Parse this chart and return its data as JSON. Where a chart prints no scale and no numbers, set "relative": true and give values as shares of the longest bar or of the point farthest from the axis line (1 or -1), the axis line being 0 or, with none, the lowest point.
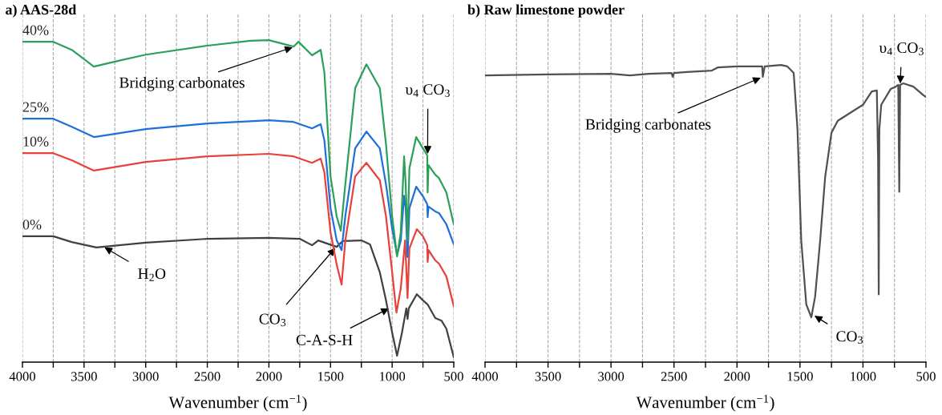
{
  "chart_data": [
    {
      "type": "line",
      "title": "a) AAS-28d",
      "xlabel": "Wavenumber (cm$^{−1}$)",
      "relative": true,
      "legend": false,
      "grid": "x",
      "marker": "none",
      "line_style": "solid",
      "xlim": [
        4000,
        500
      ],
      "xticks": [
        4000,
        {
          "value": 3750,
          "label": null
        },
        3500,
        {
          "value": 3250,
          "label": null
        },
        3000,
        {
          "value": 2750,
          "label": null
        },
        2500,
        {
          "value": 2250,
          "label": null
        },
        2000,
        {
          "value": 1750,
          "label": null
        },
        1500,
        {
          "value": 1250,
          "label": null
        },
        1000,
        {
          "value": 750,
          "label": null
        },
        500
      ],
      "series": [
        {
          "name": "40%",
          "color": "#2ca05a",
          "x": [
            4000,
            3750,
            3600,
            3421,
            3200,
            3000,
            2500,
            2150,
            2000,
            1800,
            1760,
            1650,
            1580,
            1550,
            1500,
            1450,
            1417,
            1380,
            1300,
            1209,
            1100,
            1050,
            1000,
            960,
            930,
            903,
            890,
            875,
            860,
            805,
            750,
            715,
            712,
            705,
            650,
            620,
            560,
            500
          ],
          "values": [
            0.995,
            0.995,
            0.97,
            0.918,
            0.938,
            0.955,
            0.983,
            0.998,
            1.0,
            0.98,
            0.995,
            0.953,
            0.97,
            0.9,
            0.577,
            0.453,
            0.408,
            0.552,
            0.851,
            0.925,
            0.851,
            0.677,
            0.453,
            0.328,
            0.403,
            0.639,
            0.552,
            0.378,
            0.602,
            0.699,
            0.664,
            0.642,
            0.527,
            0.612,
            0.582,
            0.572,
            0.527,
            0.428
          ]
        },
        {
          "name": "25%",
          "color": "#1f6fd8",
          "x": [
            4000,
            3750,
            3600,
            3420,
            3000,
            2500,
            2000,
            1800,
            1650,
            1580,
            1550,
            1500,
            1450,
            1410,
            1380,
            1300,
            1209,
            1100,
            1050,
            1000,
            960,
            930,
            903,
            890,
            875,
            860,
            805,
            750,
            715,
            712,
            705,
            650,
            620,
            560,
            500
          ],
          "values": [
            0.756,
            0.756,
            0.731,
            0.699,
            0.724,
            0.741,
            0.751,
            0.746,
            0.726,
            0.739,
            0.689,
            0.478,
            0.378,
            0.348,
            0.453,
            0.664,
            0.716,
            0.664,
            0.552,
            0.415,
            0.333,
            0.378,
            0.517,
            0.478,
            0.326,
            0.478,
            0.545,
            0.515,
            0.49,
            0.45,
            0.483,
            0.468,
            0.463,
            0.428,
            0.366
          ]
        },
        {
          "name": "10%",
          "color": "#e8403c",
          "x": [
            4000,
            3750,
            3600,
            3420,
            3000,
            2500,
            2000,
            1800,
            1650,
            1580,
            1550,
            1500,
            1450,
            1410,
            1380,
            1300,
            1209,
            1100,
            1050,
            1000,
            965,
            930,
            895,
            875,
            860,
            800,
            750,
            715,
            712,
            705,
            650,
            620,
            560,
            500
          ],
          "values": [
            0.649,
            0.649,
            0.627,
            0.595,
            0.622,
            0.639,
            0.647,
            0.639,
            0.619,
            0.632,
            0.59,
            0.403,
            0.303,
            0.241,
            0.378,
            0.577,
            0.619,
            0.565,
            0.453,
            0.279,
            0.154,
            0.229,
            0.378,
            0.199,
            0.353,
            0.413,
            0.391,
            0.363,
            0.311,
            0.348,
            0.316,
            0.306,
            0.266,
            0.174
          ]
        },
        {
          "name": "0%",
          "color": "#404040",
          "x": [
            4000,
            3750,
            3600,
            3400,
            3000,
            2500,
            2000,
            1750,
            1650,
            1600,
            1450,
            1400,
            1250,
            1180,
            1100,
            1050,
            1000,
            960,
            920,
            885,
            875,
            865,
            800,
            750,
            712,
            650,
            600,
            560,
            500
          ],
          "values": [
            0.391,
            0.391,
            0.373,
            0.356,
            0.371,
            0.383,
            0.386,
            0.383,
            0.363,
            0.378,
            0.358,
            0.376,
            0.378,
            0.366,
            0.279,
            0.192,
            0.092,
            0.02,
            0.092,
            0.167,
            0.134,
            0.167,
            0.211,
            0.192,
            0.179,
            0.137,
            0.129,
            0.104,
            0.015
          ]
        }
      ],
      "annotations": [
        {
          "text": "Bridging carbonates",
          "x": 1790,
          "y": 0.98
        },
        {
          "text": "υ$_{4}$ CO$_{3}$",
          "x": 712,
          "y": 0.64
        },
        {
          "text": "H$_{2}$O",
          "x": 3350,
          "y": 0.36
        },
        {
          "text": "CO$_{3}$",
          "x": 1450,
          "y": 0.36
        },
        {
          "text": "C-A-S-H",
          "x": 1010,
          "y": 0.17
        }
      ]
    },
    {
      "type": "line",
      "title": "b) Raw limestone powder",
      "xlabel": "Wavenumber (cm$^{−1}$)",
      "relative": true,
      "legend": false,
      "grid": "x",
      "marker": "none",
      "line_style": "solid",
      "xlim": [
        4000,
        500
      ],
      "xticks": [
        4000,
        {
          "value": 3750,
          "label": null
        },
        3500,
        {
          "value": 3250,
          "label": null
        },
        3000,
        {
          "value": 2750,
          "label": null
        },
        2500,
        {
          "value": 2250,
          "label": null
        },
        2000,
        {
          "value": 1750,
          "label": null
        },
        1500,
        {
          "value": 1250,
          "label": null
        },
        1000,
        {
          "value": 750,
          "label": null
        },
        500
      ],
      "series": [
        {
          "color": "#505050",
          "x": [
            4000,
            3500,
            3000,
            2850,
            2700,
            2520,
            2510,
            2500,
            2400,
            2200,
            2150,
            2000,
            1800,
            1795,
            1780,
            1650,
            1600,
            1550,
            1520,
            1490,
            1450,
            1410,
            1380,
            1340,
            1300,
            1250,
            1200,
            1100,
            1000,
            930,
            890,
            880,
            875,
            870,
            855,
            780,
            740,
            720,
            712,
            705,
            680,
            600,
            520,
            500
          ],
          "values": [
            0.965,
            0.968,
            0.97,
            0.965,
            0.97,
            0.973,
            0.96,
            0.973,
            0.976,
            0.981,
            0.992,
            0.995,
            0.995,
            0.96,
            0.995,
            1.0,
            0.995,
            0.973,
            0.785,
            0.409,
            0.194,
            0.151,
            0.22,
            0.409,
            0.624,
            0.772,
            0.812,
            0.839,
            0.866,
            0.911,
            0.914,
            0.677,
            0.228,
            0.785,
            0.866,
            0.919,
            0.927,
            0.933,
            0.573,
            0.933,
            0.938,
            0.927,
            0.898,
            0.892
          ]
        }
      ],
      "annotations": [
        {
          "text": "Bridging carbonates",
          "x": 1795,
          "y": 0.96
        },
        {
          "text": "υ$_{4}$ CO$_{3}$",
          "x": 705,
          "y": 0.93
        },
        {
          "text": "CO$_{3}$",
          "x": 1400,
          "y": 0.16
        }
      ]
    }
  ]
}
